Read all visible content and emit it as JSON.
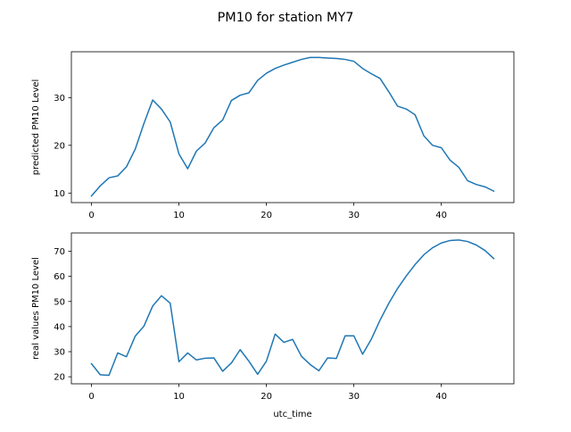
{
  "title": "PM10 for station MY7",
  "chart_data": [
    {
      "type": "line",
      "title": "",
      "xlabel": "",
      "ylabel": "predicted PM10 Level",
      "xlim": [
        -2.3,
        48.3
      ],
      "ylim": [
        8.0,
        39.6
      ],
      "xticks": [
        0,
        10,
        20,
        30,
        40
      ],
      "yticks": [
        10,
        20,
        30
      ],
      "grid": false,
      "color": "#1f77b4",
      "x": [
        0,
        1,
        2,
        3,
        4,
        5,
        6,
        7,
        8,
        9,
        10,
        11,
        12,
        13,
        14,
        15,
        16,
        17,
        18,
        19,
        20,
        21,
        22,
        23,
        24,
        25,
        26,
        27,
        28,
        29,
        30,
        31,
        32,
        33,
        34,
        35,
        36,
        37,
        38,
        39,
        40,
        41,
        42,
        43,
        44,
        45,
        46
      ],
      "values": [
        9.4,
        11.5,
        13.2,
        13.6,
        15.5,
        19.2,
        24.6,
        29.5,
        27.6,
        24.9,
        18.2,
        15.1,
        18.8,
        20.5,
        23.7,
        25.3,
        29.4,
        30.5,
        31.0,
        33.6,
        35.1,
        36.1,
        36.8,
        37.4,
        38.0,
        38.4,
        38.4,
        38.3,
        38.2,
        38.0,
        37.6,
        36.1,
        35.0,
        34.0,
        31.2,
        28.2,
        27.6,
        26.4,
        22.0,
        20.0,
        19.5,
        16.9,
        15.4,
        12.6,
        11.8,
        11.3,
        10.4
      ]
    },
    {
      "type": "line",
      "title": "",
      "xlabel": "utc_time",
      "ylabel": "real values PM10 Level",
      "xlim": [
        -2.3,
        48.3
      ],
      "ylim": [
        17.2,
        77.3
      ],
      "xticks": [
        0,
        10,
        20,
        30,
        40
      ],
      "yticks": [
        20,
        30,
        40,
        50,
        60,
        70
      ],
      "grid": false,
      "color": "#1f77b4",
      "x": [
        0,
        1,
        2,
        3,
        4,
        5,
        6,
        7,
        8,
        9,
        10,
        11,
        12,
        13,
        14,
        15,
        16,
        17,
        18,
        19,
        20,
        21,
        22,
        23,
        24,
        25,
        26,
        27,
        28,
        29,
        30,
        31,
        32,
        33,
        34,
        35,
        36,
        37,
        38,
        39,
        40,
        41,
        42,
        43,
        44,
        45,
        46
      ],
      "values": [
        25.2,
        20.8,
        20.6,
        29.5,
        28.0,
        36.2,
        40.2,
        48.2,
        52.3,
        49.3,
        26.0,
        29.5,
        26.7,
        27.4,
        27.5,
        22.2,
        25.5,
        30.8,
        26.2,
        21.0,
        26.2,
        37.0,
        33.7,
        34.9,
        28.2,
        24.9,
        22.4,
        27.5,
        27.3,
        36.3,
        36.3,
        29.0,
        35.0,
        42.6,
        49.3,
        55.2,
        60.2,
        64.7,
        68.6,
        71.4,
        73.3,
        74.3,
        74.5,
        73.9,
        72.5,
        70.3,
        67.1
      ]
    }
  ]
}
